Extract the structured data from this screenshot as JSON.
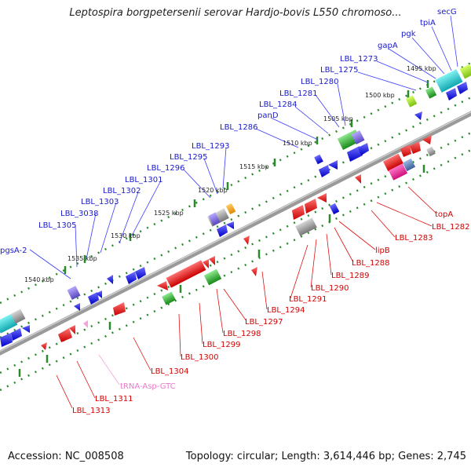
{
  "title": "Leptospira borgpetersenii serovar Hardjo-bovis L550 chromoso...",
  "footer": {
    "accession": "Accession: NC_008508",
    "stats": "Topology: circular; Length: 3,614,446 bp; Genes: 2,745"
  },
  "kbp_labels": [
    "1495 kbp",
    "1500 kbp",
    "1505 kbp",
    "1510 kbp",
    "1515 kbp",
    "1520 kbp",
    "1525 kbp",
    "1530 kbp",
    "1535 kbp",
    "1540 kbp"
  ],
  "top_genes": [
    "secG",
    "tpiA",
    "pgk",
    "gapA",
    "LBL_1273",
    "LBL_1275",
    "LBL_1280",
    "LBL_1281",
    "LBL_1284",
    "panD",
    "LBL_1286",
    "LBL_1293",
    "LBL_1295",
    "LBL_1296",
    "LBL_1301",
    "LBL_1302",
    "LBL_1303",
    "LBL_3038",
    "LBL_1305",
    "pgsA-2"
  ],
  "bottom_genes": [
    "topA",
    "LBL_1282",
    "LBL_1283",
    "lipB",
    "LBL_1288",
    "LBL_1289",
    "LBL_1290",
    "LBL_1291",
    "LBL_1294",
    "LBL_1297",
    "LBL_1298",
    "LBL_1299",
    "LBL_1300",
    "LBL_1304",
    "LBL_1311",
    "LBL_1313"
  ],
  "trna_label": "tRNA-Asp-GTC",
  "colors": {
    "plus_strand": "#0000ff",
    "minus_strand": "#ff0000",
    "backbone": "#888888",
    "label_blue": "#1a1acc",
    "label_red": "#d40000",
    "trna": "#e879c8",
    "tick": "#2a8a2a"
  }
}
